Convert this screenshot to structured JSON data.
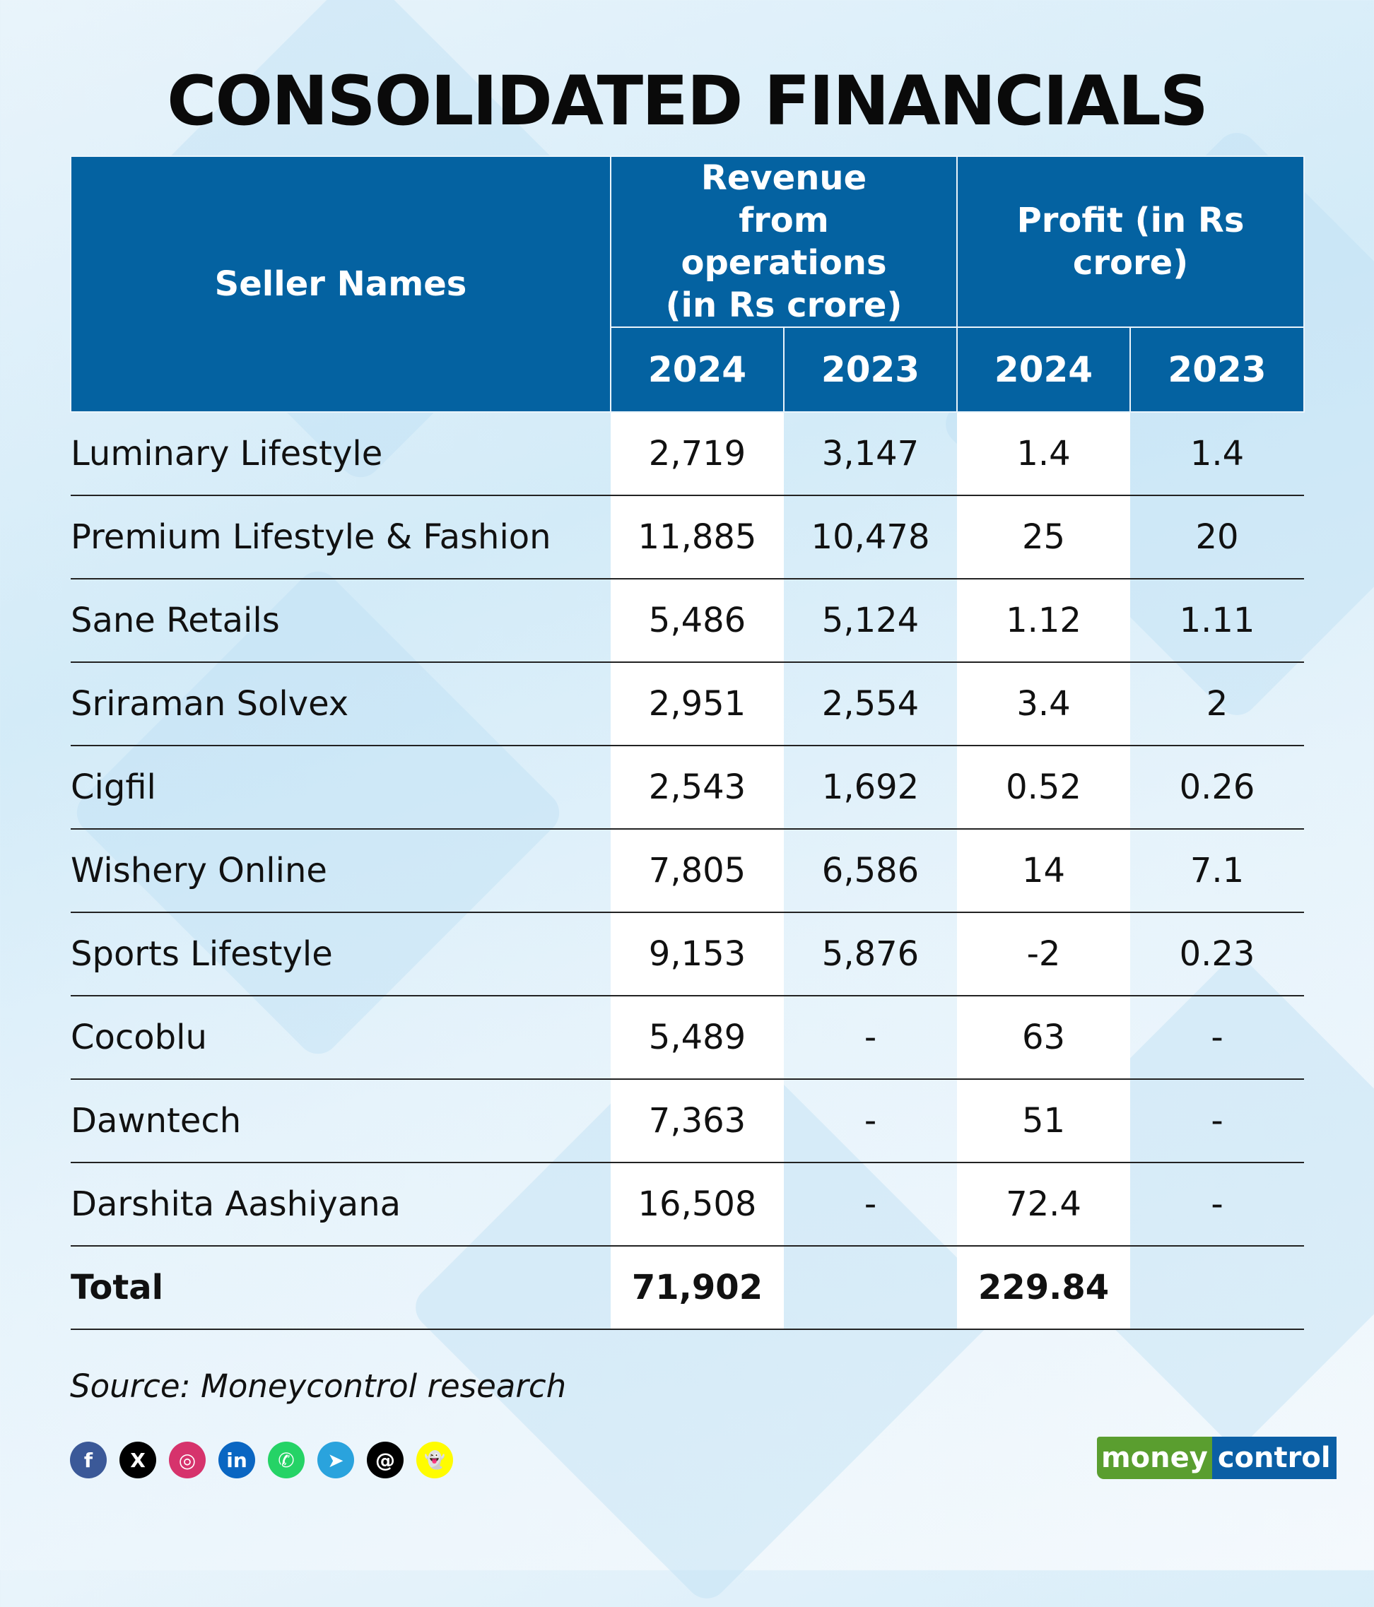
{
  "title": "CONSOLIDATED FINANCIALS",
  "table": {
    "headers": {
      "seller": "Seller Names",
      "revenue": "Revenue from operations (in Rs crore)",
      "profit": "Profit (in Rs crore)",
      "years": [
        "2024",
        "2023",
        "2024",
        "2023"
      ]
    },
    "rows": [
      {
        "name": "Luminary Lifestyle",
        "rev2024": "2,719",
        "rev2023": "3,147",
        "p2024": "1.4",
        "p2023": "1.4"
      },
      {
        "name": "Premium Lifestyle & Fashion",
        "rev2024": "11,885",
        "rev2023": "10,478",
        "p2024": "25",
        "p2023": "20"
      },
      {
        "name": "Sane Retails",
        "rev2024": "5,486",
        "rev2023": "5,124",
        "p2024": "1.12",
        "p2023": "1.11"
      },
      {
        "name": "Sriraman Solvex",
        "rev2024": "2,951",
        "rev2023": "2,554",
        "p2024": "3.4",
        "p2023": "2"
      },
      {
        "name": "Cigfil",
        "rev2024": "2,543",
        "rev2023": "1,692",
        "p2024": "0.52",
        "p2023": "0.26"
      },
      {
        "name": "Wishery Online",
        "rev2024": "7,805",
        "rev2023": "6,586",
        "p2024": "14",
        "p2023": "7.1"
      },
      {
        "name": "Sports Lifestyle",
        "rev2024": "9,153",
        "rev2023": "5,876",
        "p2024": "-2",
        "p2023": "0.23"
      },
      {
        "name": "Cocoblu",
        "rev2024": "5,489",
        "rev2023": "-",
        "p2024": "63",
        "p2023": "-"
      },
      {
        "name": "Dawntech",
        "rev2024": "7,363",
        "rev2023": "-",
        "p2024": "51",
        "p2023": "-"
      },
      {
        "name": "Darshita Aashiyana",
        "rev2024": "16,508",
        "rev2023": "-",
        "p2024": "72.4",
        "p2023": "-"
      }
    ],
    "total": {
      "name": "Total",
      "rev2024": "71,902",
      "rev2023": "",
      "p2024": "229.84",
      "p2023": ""
    }
  },
  "source": "Source: Moneycontrol research",
  "social_icons": [
    {
      "name": "facebook-icon",
      "glyph": "f",
      "color": "#3b5998"
    },
    {
      "name": "x-icon",
      "glyph": "X",
      "color": "#000000"
    },
    {
      "name": "instagram-icon",
      "glyph": "◎",
      "color": "#d6336c"
    },
    {
      "name": "linkedin-icon",
      "glyph": "in",
      "color": "#0a66c2"
    },
    {
      "name": "whatsapp-icon",
      "glyph": "✆",
      "color": "#25d366"
    },
    {
      "name": "telegram-icon",
      "glyph": "➤",
      "color": "#2aa3dd"
    },
    {
      "name": "threads-icon",
      "glyph": "@",
      "color": "#000000"
    },
    {
      "name": "snapchat-icon",
      "glyph": "👻",
      "color": "#fffc00"
    }
  ],
  "logo": {
    "part1": "money",
    "part2": "control",
    "green": "#5a9e2f",
    "blue": "#0b5fa5"
  },
  "colors": {
    "header": "#0462a1"
  }
}
